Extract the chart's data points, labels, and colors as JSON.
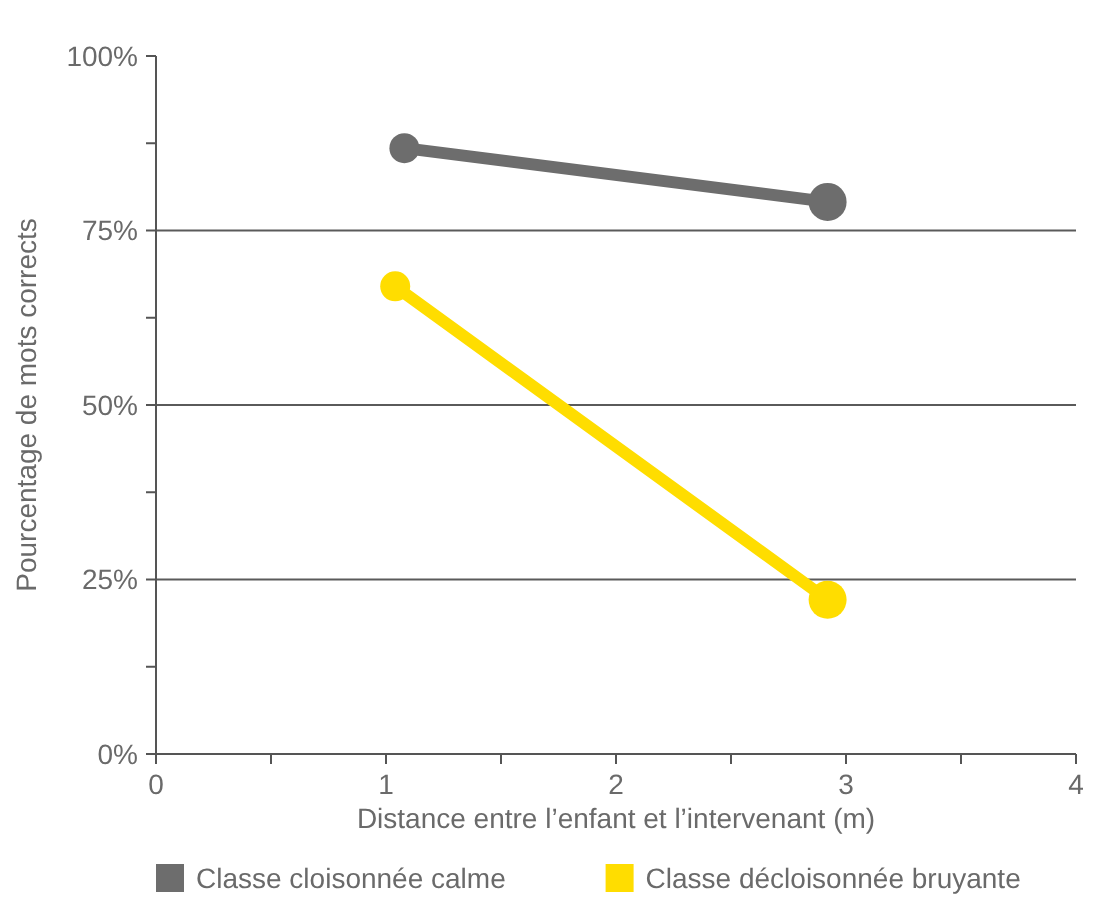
{
  "chart_data": {
    "type": "line",
    "xlabel": "Distance entre l’enfant et l’intervenant (m)",
    "ylabel": "Pourcentage de mots corrects",
    "series": [
      {
        "name": "Classe cloisonnée calme",
        "color": "#6d6d6d",
        "x": [
          1.08,
          2.92
        ],
        "values": [
          86.8,
          79.1
        ]
      },
      {
        "name": "Classe décloisonnée bruyante",
        "color": "#ffdd00",
        "x": [
          1.04,
          2.92
        ],
        "values": [
          67,
          22.1
        ]
      }
    ],
    "xlim": [
      0,
      4
    ],
    "xticks": [
      0,
      {
        "value": 0.5,
        "label": null
      },
      1,
      {
        "value": 1.5,
        "label": null
      },
      2,
      {
        "value": 2.5,
        "label": null
      },
      3,
      {
        "value": 3.5,
        "label": null
      },
      4
    ],
    "ylim": [
      0,
      100
    ],
    "yticks": [
      {
        "value": 0,
        "label": "0%"
      },
      {
        "value": 12.5,
        "label": null
      },
      {
        "value": 25,
        "label": "25%"
      },
      {
        "value": 37.5,
        "label": null
      },
      {
        "value": 50,
        "label": "50%"
      },
      {
        "value": 62.5,
        "label": null
      },
      {
        "value": 75,
        "label": "75%"
      },
      {
        "value": 87.5,
        "label": null
      },
      {
        "value": 100,
        "label": "100%"
      }
    ],
    "grid": "y",
    "legend": "bottom",
    "marker": "circle",
    "line_style": "solid"
  }
}
